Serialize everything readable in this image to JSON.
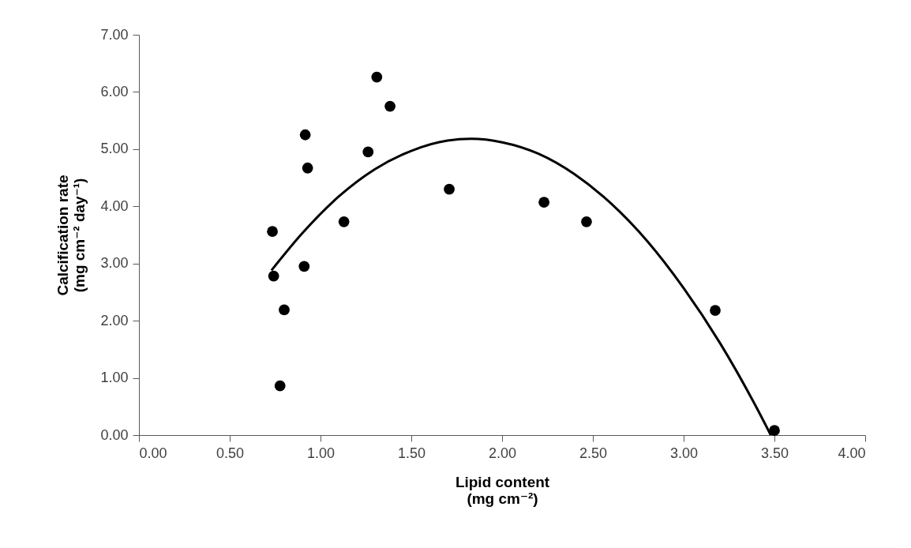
{
  "chart_data": {
    "type": "scatter",
    "xlabel": "Lipid content\n(mg cm⁻²)",
    "ylabel": "Calcification rate\n(mg cm⁻² day⁻¹)",
    "xlim": [
      0,
      4
    ],
    "ylim": [
      0,
      7
    ],
    "xticks": [
      {
        "value": 0,
        "label": "0.00"
      },
      {
        "value": 0.5,
        "label": "0.50"
      },
      {
        "value": 1,
        "label": "1.00"
      },
      {
        "value": 1.5,
        "label": "1.50"
      },
      {
        "value": 2,
        "label": "2.00"
      },
      {
        "value": 2.5,
        "label": "2.50"
      },
      {
        "value": 3,
        "label": "3.00"
      },
      {
        "value": 3.5,
        "label": "3.50"
      },
      {
        "value": 4,
        "label": "4.00"
      }
    ],
    "yticks": [
      {
        "value": 0,
        "label": "0.00"
      },
      {
        "value": 1,
        "label": "1.00"
      },
      {
        "value": 2,
        "label": "2.00"
      },
      {
        "value": 3,
        "label": "3.00"
      },
      {
        "value": 4,
        "label": "4.00"
      },
      {
        "value": 5,
        "label": "5.00"
      },
      {
        "value": 6,
        "label": "6.00"
      },
      {
        "value": 7,
        "label": "7.00"
      }
    ],
    "grid": false,
    "marker": "circle",
    "series": [
      {
        "color": "#000000",
        "x": [
          0.735,
          0.742,
          0.8,
          0.777,
          0.91,
          0.916,
          0.929,
          1.129,
          1.262,
          1.31,
          1.383,
          1.709,
          2.231,
          2.465,
          3.174,
          3.5
        ],
        "values": [
          3.56,
          2.78,
          2.19,
          0.86,
          2.95,
          5.25,
          4.67,
          3.73,
          4.95,
          6.26,
          5.75,
          4.3,
          4.07,
          3.73,
          2.18,
          0.08
        ]
      },
      {
        "type": "line",
        "color": "#000000",
        "marker": "none",
        "line_style": "solid",
        "x": [
          0.73,
          0.9,
          1.1,
          1.3,
          1.5,
          1.7,
          1.83,
          2.0,
          2.2,
          2.4,
          2.6,
          2.8,
          3.0,
          3.2,
          3.4,
          3.48
        ],
        "values": [
          2.88,
          3.53,
          4.17,
          4.65,
          4.97,
          5.15,
          5.18,
          5.12,
          4.92,
          4.56,
          4.05,
          3.39,
          2.57,
          1.61,
          0.49,
          0.0
        ]
      }
    ]
  }
}
